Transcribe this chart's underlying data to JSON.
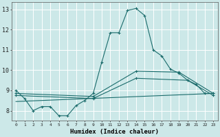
{
  "background_color": "#cce8e8",
  "grid_color": "#ffffff",
  "line_color": "#1a6b6b",
  "xlabel": "Humidex (Indice chaleur)",
  "ylabel_ticks": [
    8,
    9,
    10,
    11,
    12,
    13
  ],
  "xlim": [
    -0.5,
    23.5
  ],
  "ylim": [
    7.5,
    13.35
  ],
  "xticks": [
    0,
    1,
    2,
    3,
    4,
    5,
    6,
    7,
    8,
    9,
    10,
    11,
    12,
    13,
    14,
    15,
    16,
    17,
    18,
    19,
    20,
    21,
    22,
    23
  ],
  "lines": [
    {
      "x": [
        0,
        1,
        2,
        3,
        4,
        5,
        6,
        7,
        8,
        9,
        10,
        11,
        12,
        13,
        14,
        15,
        16,
        17,
        18,
        19,
        20,
        21,
        22,
        23
      ],
      "y": [
        9.0,
        8.6,
        8.0,
        8.2,
        8.2,
        7.75,
        7.75,
        8.25,
        8.5,
        8.85,
        10.4,
        11.85,
        11.85,
        12.95,
        13.05,
        12.7,
        11.0,
        10.7,
        10.05,
        9.85,
        9.5,
        9.3,
        8.85,
        8.85
      ],
      "marker": "+"
    },
    {
      "x": [
        0,
        9,
        14,
        19,
        23
      ],
      "y": [
        8.85,
        8.7,
        9.95,
        9.9,
        8.85
      ],
      "marker": "+"
    },
    {
      "x": [
        0,
        9,
        14,
        20,
        23
      ],
      "y": [
        8.75,
        8.6,
        9.6,
        9.5,
        8.75
      ],
      "marker": "+"
    },
    {
      "x": [
        0,
        23
      ],
      "y": [
        8.45,
        8.85
      ],
      "marker": null
    }
  ]
}
